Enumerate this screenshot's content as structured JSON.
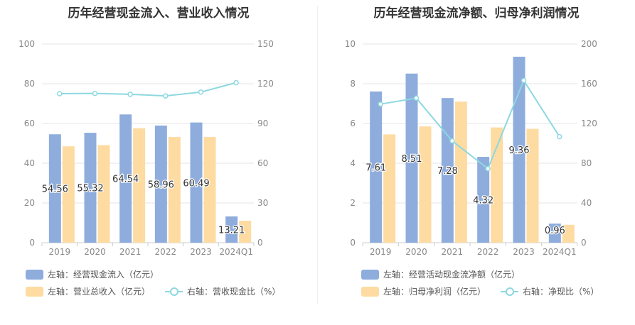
{
  "colors": {
    "bar_blue": "#8eaddd",
    "bar_yellow": "#fddba1",
    "line_cyan": "#8dd8e0",
    "axis_text": "#888888",
    "grid": "#e6e6e6",
    "label_text": "#333333"
  },
  "chart_data": [
    {
      "type": "bar",
      "title": "历年经营现金流入、营业收入情况",
      "categories": [
        "2019",
        "2020",
        "2021",
        "2022",
        "2023",
        "2024Q1"
      ],
      "left_axis": {
        "ylim": [
          0,
          100
        ],
        "ticks": [
          "0",
          "20",
          "40",
          "60",
          "80",
          "100"
        ]
      },
      "right_axis": {
        "ylim": [
          0,
          150
        ],
        "ticks": [
          "0",
          "30",
          "60",
          "90",
          "120",
          "150"
        ]
      },
      "grid": true,
      "legend_position": "bottom",
      "series": [
        {
          "name": "左轴：经营现金流入（亿元）",
          "axis": "left",
          "kind": "bar",
          "color": "#8eaddd",
          "values": [
            54.56,
            55.32,
            64.54,
            58.96,
            60.49,
            13.21
          ],
          "labels": [
            "54.56",
            "55.32",
            "64.54",
            "58.96",
            "60.49",
            "13.21"
          ]
        },
        {
          "name": "左轴：营业总收入（亿元）",
          "axis": "left",
          "kind": "bar",
          "color": "#fddba1",
          "values": [
            48.5,
            49.1,
            57.6,
            53.2,
            53.2,
            11.0
          ]
        },
        {
          "name": "右轴：营收现金比（%）",
          "axis": "right",
          "kind": "line",
          "color": "#8dd8e0",
          "values": [
            112.5,
            112.7,
            112.0,
            110.8,
            113.7,
            120.8
          ]
        }
      ]
    },
    {
      "type": "bar",
      "title": "历年经营现金流净额、归母净利润情况",
      "categories": [
        "2019",
        "2020",
        "2021",
        "2022",
        "2023",
        "2024Q1"
      ],
      "left_axis": {
        "ylim": [
          0,
          10
        ],
        "ticks": [
          "0",
          "2",
          "4",
          "6",
          "8",
          "10"
        ]
      },
      "right_axis": {
        "ylim": [
          0,
          200
        ],
        "ticks": [
          "0",
          "40",
          "80",
          "120",
          "160",
          "200"
        ]
      },
      "grid": true,
      "legend_position": "bottom",
      "series": [
        {
          "name": "左轴：经营活动现金流净额（亿元）",
          "axis": "left",
          "kind": "bar",
          "color": "#8eaddd",
          "values": [
            7.61,
            8.51,
            7.28,
            4.32,
            9.36,
            0.96
          ],
          "labels": [
            "7.61",
            "8.51",
            "7.28",
            "4.32",
            "9.36",
            "0.96"
          ]
        },
        {
          "name": "左轴：归母净利润（亿元）",
          "axis": "left",
          "kind": "bar",
          "color": "#fddba1",
          "values": [
            5.45,
            5.85,
            7.1,
            5.8,
            5.73,
            0.9
          ]
        },
        {
          "name": "右轴：净现比（%）",
          "axis": "right",
          "kind": "line",
          "color": "#8dd8e0",
          "values": [
            139.5,
            145.5,
            102.5,
            74.5,
            163.3,
            106.7
          ]
        }
      ]
    }
  ]
}
